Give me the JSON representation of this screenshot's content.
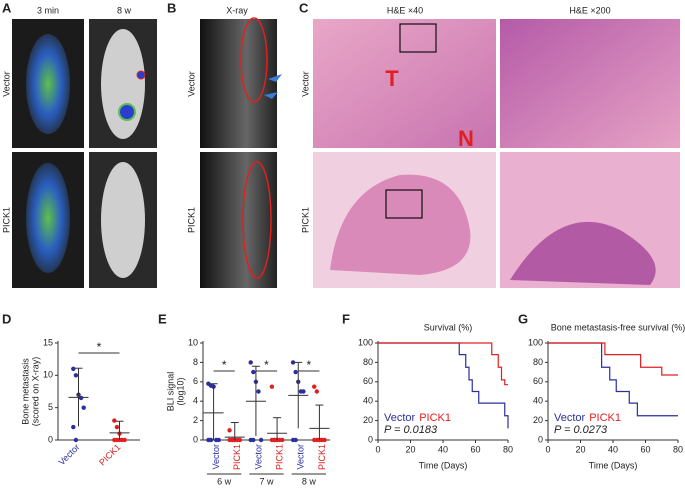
{
  "panels": {
    "A": {
      "letter": "A",
      "columns": [
        "3 min",
        "8 w"
      ],
      "rows": [
        "Vector",
        "PICK1"
      ]
    },
    "B": {
      "letter": "B",
      "title": "X-ray",
      "rows": [
        "Vector",
        "PICK1"
      ]
    },
    "C": {
      "letter": "C",
      "columns": [
        "H&E  ×40",
        "H&E  ×200"
      ],
      "rows": [
        "Vector",
        "PICK1"
      ],
      "marks": [
        "T",
        "N"
      ]
    }
  },
  "chart_data": [
    {
      "type": "dotplot",
      "letter": "D",
      "ylabel": [
        "Bone metastasis",
        "(scored on X-ray)"
      ],
      "series": [
        {
          "name": "Vector",
          "color": "#2b2f9e",
          "values": [
            11,
            10,
            7,
            6.5,
            5,
            2,
            0
          ],
          "mean": 6.6,
          "sd": 4.5
        },
        {
          "name": "PICK1",
          "color": "#e02020",
          "values": [
            3,
            2,
            1,
            0,
            0,
            0,
            0,
            0
          ],
          "mean": 1.1,
          "sd": 1.8
        }
      ],
      "ylim": [
        0,
        15
      ],
      "yticks": [
        0,
        5,
        10,
        15
      ],
      "significance": "*"
    },
    {
      "type": "grouped-dotplot",
      "letter": "E",
      "ylabel": [
        "BLI signal",
        "(log10)"
      ],
      "groups": [
        "6 w",
        "7 w",
        "8 w"
      ],
      "series": [
        {
          "name": "Vector",
          "color": "#2b2f9e",
          "values": [
            [
              5.8,
              5.6,
              5.5,
              0,
              0,
              0,
              0
            ],
            [
              8,
              7,
              6,
              5,
              0,
              0,
              0
            ],
            [
              8,
              7,
              6,
              5,
              5,
              0,
              0
            ]
          ],
          "mean": [
            2.8,
            4.0,
            4.6
          ],
          "sd": [
            3.0,
            3.6,
            3.4
          ]
        },
        {
          "name": "PICK1",
          "color": "#e02020",
          "values": [
            [
              1,
              0,
              0,
              0,
              0,
              0,
              0,
              0
            ],
            [
              5.5,
              0,
              0,
              0,
              0,
              0,
              0,
              0
            ],
            [
              5.5,
              5,
              0,
              0,
              0,
              0,
              0,
              0
            ]
          ],
          "mean": [
            0.3,
            0.7,
            1.2
          ],
          "sd": [
            1.5,
            1.6,
            2.4
          ]
        }
      ],
      "ylim": [
        0,
        10
      ],
      "yticks": [
        0,
        2,
        4,
        6,
        8,
        10
      ],
      "significance": [
        "*",
        "*",
        "*"
      ]
    },
    {
      "type": "step",
      "letter": "F",
      "title": "Survival (%)",
      "xlabel": "Time (Days)",
      "annotation": "P = 0.0183",
      "series": [
        {
          "name": "Vector",
          "color": "#2b2f9e",
          "x": [
            0,
            50,
            54,
            56,
            58,
            62,
            78,
            80
          ],
          "values": [
            100,
            88,
            75,
            62,
            50,
            38,
            25,
            12
          ]
        },
        {
          "name": "PICK1",
          "color": "#e02020",
          "x": [
            0,
            70,
            74,
            76,
            78,
            80
          ],
          "values": [
            100,
            88,
            75,
            62,
            57,
            57
          ]
        }
      ],
      "xlim": [
        0,
        80
      ],
      "xticks": [
        0,
        20,
        40,
        60,
        80
      ],
      "ylim": [
        0,
        100
      ],
      "yticks": [
        0,
        20,
        40,
        60,
        80,
        100
      ]
    },
    {
      "type": "step",
      "letter": "G",
      "title": "Bone metastasis-free survival (%)",
      "xlabel": "Time (Days)",
      "annotation": "P = 0.0273",
      "series": [
        {
          "name": "Vector",
          "color": "#2b2f9e",
          "x": [
            0,
            33,
            38,
            42,
            50,
            55,
            80
          ],
          "values": [
            100,
            75,
            62,
            50,
            38,
            25,
            25
          ]
        },
        {
          "name": "PICK1",
          "color": "#e02020",
          "x": [
            0,
            35,
            57,
            70,
            80
          ],
          "values": [
            100,
            88,
            75,
            67,
            67
          ]
        }
      ],
      "xlim": [
        0,
        80
      ],
      "xticks": [
        0,
        20,
        40,
        60,
        80
      ],
      "ylim": [
        0,
        100
      ],
      "yticks": [
        0,
        20,
        40,
        60,
        80,
        100
      ]
    }
  ]
}
